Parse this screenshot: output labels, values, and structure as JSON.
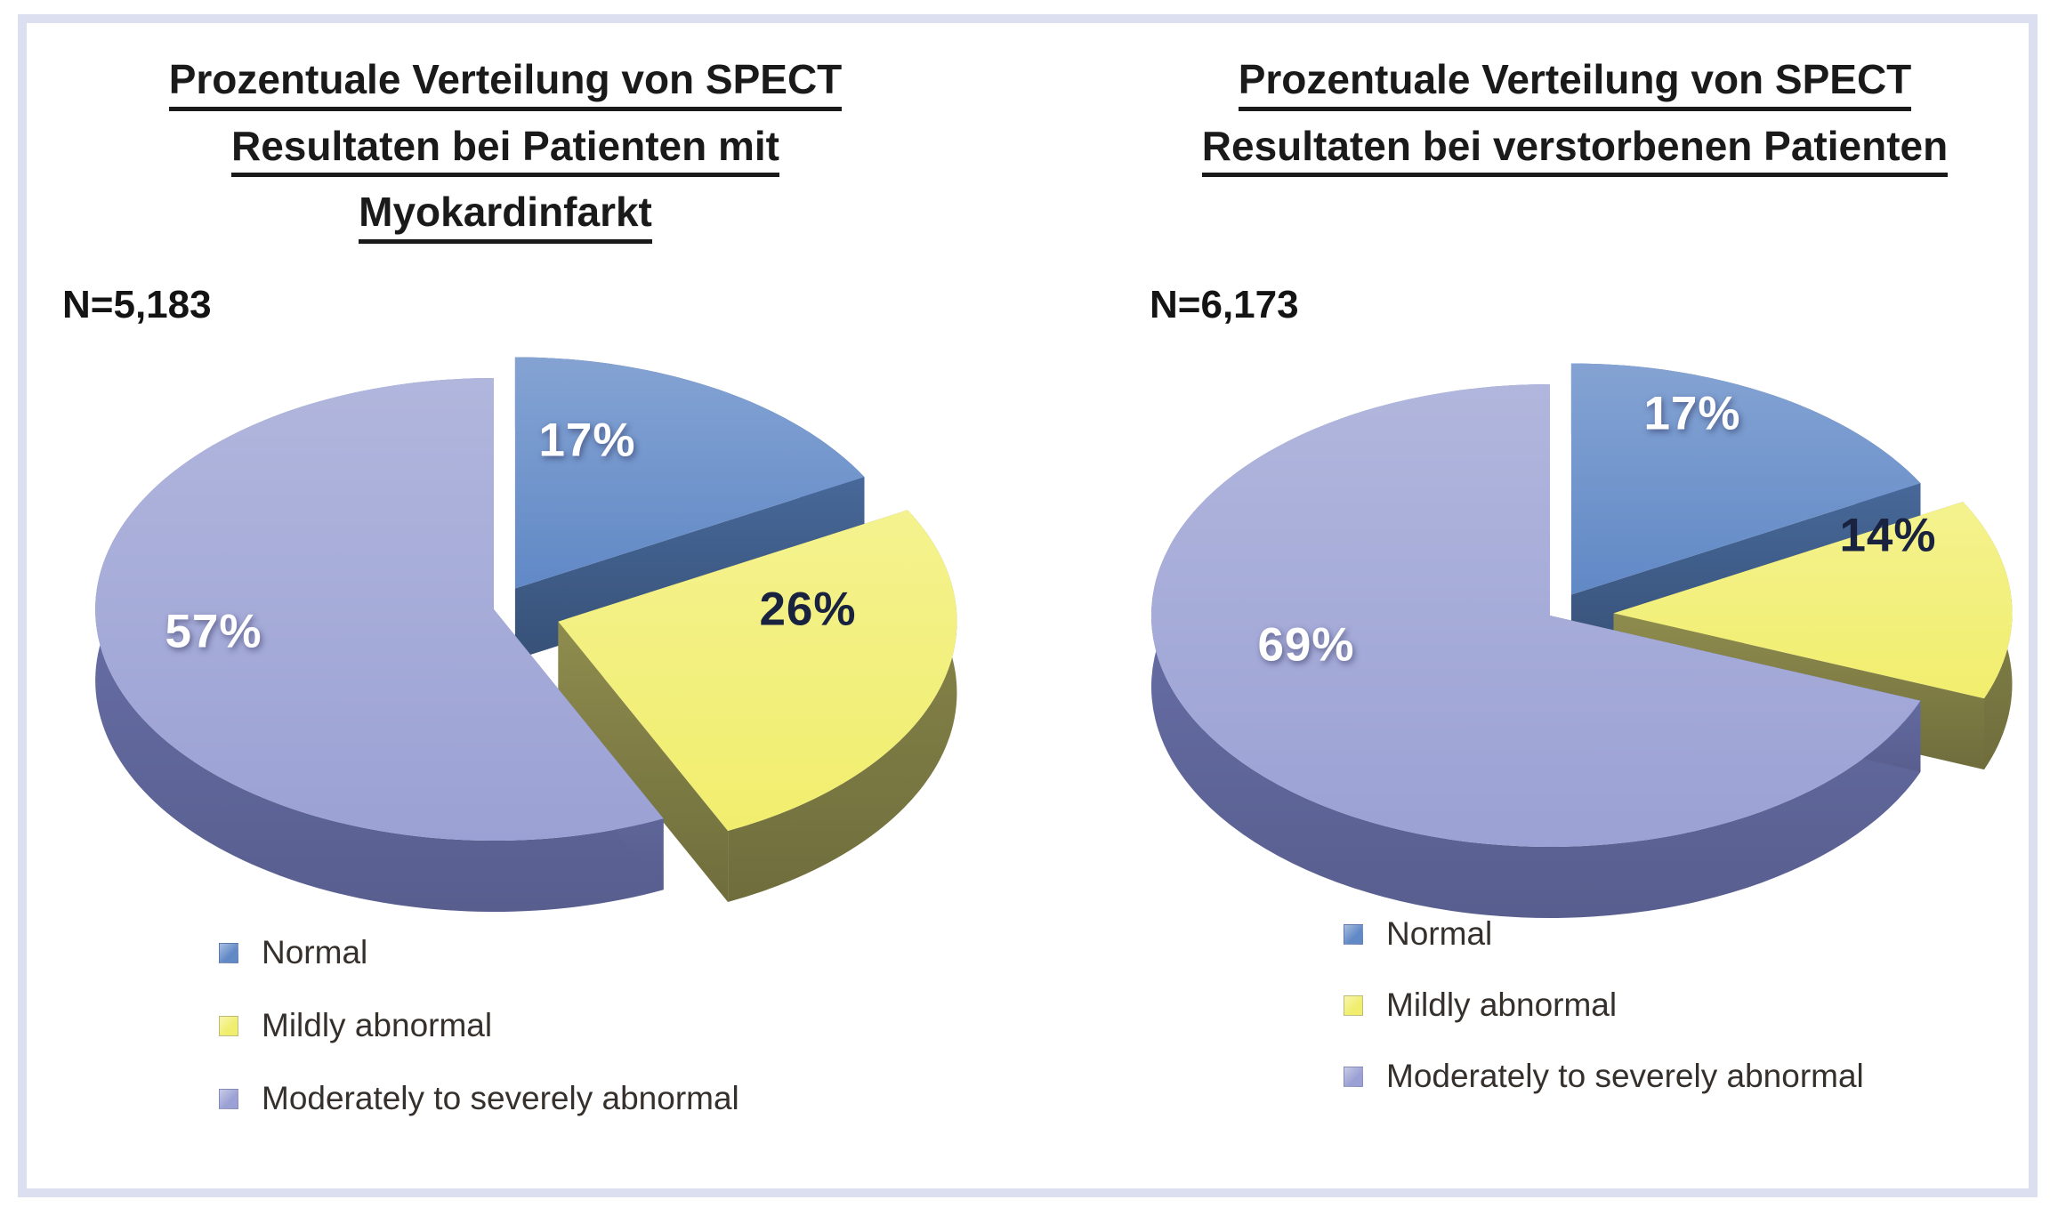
{
  "frame": {
    "border_color": "#dcdfef",
    "background": "#ffffff"
  },
  "chart_data": [
    {
      "type": "pie",
      "effect_3d": true,
      "title": "Prozentuale Verteilung von SPECT Resultaten bei Patienten mit Myokardinfarkt",
      "title_lines": [
        "Prozentuale Verteilung von SPECT",
        "Resultaten bei Patienten mit",
        "Myokardinfarkt"
      ],
      "n_label": "N=5,183",
      "n_value": 5183,
      "unit": "%",
      "legend_position": "bottom-left",
      "slices": [
        {
          "label": "Normal",
          "value": 17,
          "value_label": "17%",
          "color": "#6189c6",
          "side_color": "#476899",
          "pct_label_color": "#ffffff"
        },
        {
          "label": "Mildly abnormal",
          "value": 26,
          "value_label": "26%",
          "color": "#f1ee6e",
          "side_color": "#8e8c4d",
          "pct_label_color": "#19223f"
        },
        {
          "label": "Moderately to severely abnormal",
          "value": 57,
          "value_label": "57%",
          "color": "#9ba1d4",
          "side_color": "#7179b6",
          "pct_label_color": "#ffffff"
        }
      ]
    },
    {
      "type": "pie",
      "effect_3d": true,
      "title": "Prozentuale Verteilung von SPECT Resultaten bei verstorbenen Patienten",
      "title_lines": [
        "Prozentuale Verteilung von SPECT",
        "Resultaten bei verstorbenen Patienten"
      ],
      "n_label": "N=6,173",
      "n_value": 6173,
      "unit": "%",
      "legend_position": "bottom-left",
      "slices": [
        {
          "label": "Normal",
          "value": 17,
          "value_label": "17%",
          "color": "#6189c6",
          "side_color": "#476899",
          "pct_label_color": "#ffffff"
        },
        {
          "label": "Mildly abnormal",
          "value": 14,
          "value_label": "14%",
          "color": "#f1ee6e",
          "side_color": "#8e8c4d",
          "pct_label_color": "#19223f"
        },
        {
          "label": "Moderately to severely abnormal",
          "value": 69,
          "value_label": "69%",
          "color": "#9ba1d4",
          "side_color": "#7179b6",
          "pct_label_color": "#ffffff"
        }
      ]
    }
  ]
}
